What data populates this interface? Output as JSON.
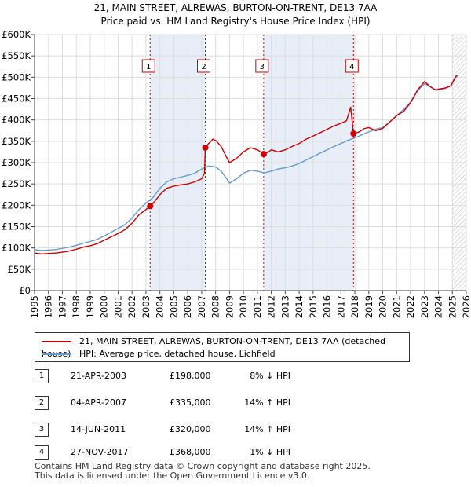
{
  "chart_data": {
    "type": "line",
    "title": "21, MAIN STREET, ALREWAS, BURTON-ON-TRENT, DE13 7AA",
    "subtitle": "Price paid vs. HM Land Registry's House Price Index (HPI)",
    "xlim": [
      1995,
      2026
    ],
    "ylim": [
      0,
      600000
    ],
    "x_ticks": [
      "1995",
      "1996",
      "1997",
      "1998",
      "1999",
      "2000",
      "2001",
      "2002",
      "2003",
      "2004",
      "2005",
      "2006",
      "2007",
      "2008",
      "2009",
      "2010",
      "2011",
      "2012",
      "2013",
      "2014",
      "2015",
      "2016",
      "2017",
      "2018",
      "2019",
      "2020",
      "2021",
      "2022",
      "2023",
      "2024",
      "2025",
      "2026"
    ],
    "y_ticks": [
      {
        "value": 0,
        "label": "£0"
      },
      {
        "value": 50000,
        "label": "£50K"
      },
      {
        "value": 100000,
        "label": "£100K"
      },
      {
        "value": 150000,
        "label": "£150K"
      },
      {
        "value": 200000,
        "label": "£200K"
      },
      {
        "value": 250000,
        "label": "£250K"
      },
      {
        "value": 300000,
        "label": "£300K"
      },
      {
        "value": 350000,
        "label": "£350K"
      },
      {
        "value": 400000,
        "label": "£400K"
      },
      {
        "value": 450000,
        "label": "£450K"
      },
      {
        "value": 500000,
        "label": "£500K"
      },
      {
        "value": 550000,
        "label": "£550K"
      },
      {
        "value": 600000,
        "label": "£600K"
      }
    ],
    "shaded_periods": [
      [
        2003.3,
        2007.26
      ],
      [
        2011.45,
        2017.9
      ]
    ],
    "forecast_start": 2025.0,
    "series": [
      {
        "name": "21, MAIN STREET, ALREWAS, BURTON-ON-TRENT, DE13 7AA (detached house)",
        "color": "#cc0000",
        "points": [
          [
            1995,
            88000
          ],
          [
            1995.5,
            86000
          ],
          [
            1996,
            87000
          ],
          [
            1996.5,
            88000
          ],
          [
            1997,
            90000
          ],
          [
            1997.5,
            93000
          ],
          [
            1998,
            97000
          ],
          [
            1998.5,
            102000
          ],
          [
            1999,
            105000
          ],
          [
            1999.5,
            110000
          ],
          [
            2000,
            118000
          ],
          [
            2000.5,
            126000
          ],
          [
            2001,
            134000
          ],
          [
            2001.5,
            143000
          ],
          [
            2002,
            158000
          ],
          [
            2002.5,
            178000
          ],
          [
            2003,
            190000
          ],
          [
            2003.3,
            198000
          ],
          [
            2003.6,
            208000
          ],
          [
            2004,
            225000
          ],
          [
            2004.5,
            240000
          ],
          [
            2005,
            245000
          ],
          [
            2005.5,
            248000
          ],
          [
            2006,
            250000
          ],
          [
            2006.5,
            255000
          ],
          [
            2007,
            262000
          ],
          [
            2007.2,
            275000
          ],
          [
            2007.26,
            335000
          ],
          [
            2007.5,
            345000
          ],
          [
            2007.8,
            355000
          ],
          [
            2008,
            352000
          ],
          [
            2008.4,
            338000
          ],
          [
            2008.8,
            312000
          ],
          [
            2009,
            300000
          ],
          [
            2009.5,
            310000
          ],
          [
            2010,
            325000
          ],
          [
            2010.5,
            335000
          ],
          [
            2011,
            330000
          ],
          [
            2011.45,
            320000
          ],
          [
            2011.8,
            325000
          ],
          [
            2012,
            330000
          ],
          [
            2012.5,
            325000
          ],
          [
            2013,
            330000
          ],
          [
            2013.5,
            338000
          ],
          [
            2014,
            345000
          ],
          [
            2014.5,
            355000
          ],
          [
            2015,
            362000
          ],
          [
            2015.5,
            370000
          ],
          [
            2016,
            378000
          ],
          [
            2016.5,
            386000
          ],
          [
            2017,
            392000
          ],
          [
            2017.4,
            398000
          ],
          [
            2017.7,
            430000
          ],
          [
            2017.9,
            368000
          ],
          [
            2018.3,
            372000
          ],
          [
            2018.7,
            380000
          ],
          [
            2019,
            382000
          ],
          [
            2019.5,
            375000
          ],
          [
            2020,
            380000
          ],
          [
            2020.5,
            395000
          ],
          [
            2021,
            410000
          ],
          [
            2021.5,
            420000
          ],
          [
            2022,
            440000
          ],
          [
            2022.5,
            470000
          ],
          [
            2023,
            490000
          ],
          [
            2023.4,
            478000
          ],
          [
            2023.8,
            470000
          ],
          [
            2024,
            472000
          ],
          [
            2024.5,
            475000
          ],
          [
            2024.9,
            480000
          ],
          [
            2025.2,
            500000
          ],
          [
            2025.35,
            505000
          ]
        ]
      },
      {
        "name": "HPI: Average price, detached house, Lichfield",
        "color": "#6699cc",
        "points": [
          [
            1995,
            96000
          ],
          [
            1995.5,
            94000
          ],
          [
            1996,
            95000
          ],
          [
            1996.5,
            96000
          ],
          [
            1997,
            99000
          ],
          [
            1997.5,
            102000
          ],
          [
            1998,
            106000
          ],
          [
            1998.5,
            111000
          ],
          [
            1999,
            115000
          ],
          [
            1999.5,
            120000
          ],
          [
            2000,
            128000
          ],
          [
            2000.5,
            137000
          ],
          [
            2001,
            146000
          ],
          [
            2001.5,
            155000
          ],
          [
            2002,
            170000
          ],
          [
            2002.5,
            190000
          ],
          [
            2003,
            205000
          ],
          [
            2003.5,
            218000
          ],
          [
            2004,
            240000
          ],
          [
            2004.5,
            255000
          ],
          [
            2005,
            262000
          ],
          [
            2005.5,
            266000
          ],
          [
            2006,
            270000
          ],
          [
            2006.5,
            275000
          ],
          [
            2007,
            285000
          ],
          [
            2007.5,
            292000
          ],
          [
            2008,
            290000
          ],
          [
            2008.4,
            280000
          ],
          [
            2008.8,
            262000
          ],
          [
            2009,
            252000
          ],
          [
            2009.5,
            262000
          ],
          [
            2010,
            275000
          ],
          [
            2010.5,
            282000
          ],
          [
            2011,
            280000
          ],
          [
            2011.5,
            276000
          ],
          [
            2012,
            280000
          ],
          [
            2012.5,
            285000
          ],
          [
            2013,
            288000
          ],
          [
            2013.5,
            292000
          ],
          [
            2014,
            298000
          ],
          [
            2014.5,
            306000
          ],
          [
            2015,
            314000
          ],
          [
            2015.5,
            322000
          ],
          [
            2016,
            330000
          ],
          [
            2016.5,
            338000
          ],
          [
            2017,
            345000
          ],
          [
            2017.5,
            352000
          ],
          [
            2018,
            358000
          ],
          [
            2018.5,
            365000
          ],
          [
            2019,
            372000
          ],
          [
            2019.5,
            378000
          ],
          [
            2020,
            382000
          ],
          [
            2020.5,
            395000
          ],
          [
            2021,
            410000
          ],
          [
            2021.5,
            425000
          ],
          [
            2022,
            442000
          ],
          [
            2022.5,
            468000
          ],
          [
            2023,
            485000
          ],
          [
            2023.4,
            478000
          ],
          [
            2023.8,
            470000
          ],
          [
            2024,
            470000
          ],
          [
            2024.5,
            474000
          ],
          [
            2024.9,
            480000
          ],
          [
            2025.2,
            498000
          ],
          [
            2025.35,
            502000
          ]
        ]
      }
    ],
    "sales": [
      {
        "label": "1",
        "date": "21-APR-2003",
        "x": 2003.3,
        "price_value": 198000,
        "price": "£198,000",
        "hpi": "8% ↓ HPI"
      },
      {
        "label": "2",
        "date": "04-APR-2007",
        "x": 2007.26,
        "price_value": 335000,
        "price": "£335,000",
        "hpi": "14% ↑ HPI"
      },
      {
        "label": "3",
        "date": "14-JUN-2011",
        "x": 2011.45,
        "price_value": 320000,
        "price": "£320,000",
        "hpi": "14% ↑ HPI"
      },
      {
        "label": "4",
        "date": "27-NOV-2017",
        "x": 2017.9,
        "price_value": 368000,
        "price": "£368,000",
        "hpi": "1% ↓ HPI"
      }
    ]
  },
  "legend": {
    "property_label": "21, MAIN STREET, ALREWAS, BURTON-ON-TRENT, DE13 7AA (detached house)",
    "hpi_label": "HPI: Average price, detached house, Lichfield"
  },
  "colors": {
    "property": "#cc0000",
    "hpi": "#6699cc",
    "shade": "#e8eef8",
    "grid": "#dddddd"
  },
  "footer": {
    "line1": "Contains HM Land Registry data © Crown copyright and database right 2025.",
    "line2": "This data is licensed under the Open Government Licence v3.0."
  }
}
